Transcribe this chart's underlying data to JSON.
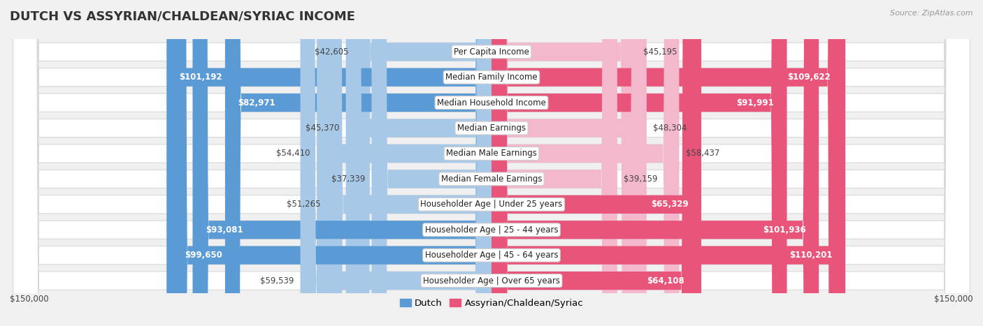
{
  "title": "DUTCH VS ASSYRIAN/CHALDEAN/SYRIAC INCOME",
  "source": "Source: ZipAtlas.com",
  "categories": [
    "Per Capita Income",
    "Median Family Income",
    "Median Household Income",
    "Median Earnings",
    "Median Male Earnings",
    "Median Female Earnings",
    "Householder Age | Under 25 years",
    "Householder Age | 25 - 44 years",
    "Householder Age | 45 - 64 years",
    "Householder Age | Over 65 years"
  ],
  "dutch_values": [
    42605,
    101192,
    82971,
    45370,
    54410,
    37339,
    51265,
    93081,
    99650,
    59539
  ],
  "assyrian_values": [
    45195,
    109622,
    91991,
    48304,
    58437,
    39159,
    65329,
    101936,
    110201,
    64108
  ],
  "dutch_labels": [
    "$42,605",
    "$101,192",
    "$82,971",
    "$45,370",
    "$54,410",
    "$37,339",
    "$51,265",
    "$93,081",
    "$99,650",
    "$59,539"
  ],
  "assyrian_labels": [
    "$45,195",
    "$109,622",
    "$91,991",
    "$48,304",
    "$58,437",
    "$39,159",
    "$65,329",
    "$101,936",
    "$110,201",
    "$64,108"
  ],
  "dutch_color_light": "#a8c8e8",
  "dutch_color_dark": "#5b9bd5",
  "assyrian_color_light": "#f4b8cc",
  "assyrian_color_dark": "#e8547a",
  "max_value": 150000,
  "background_color": "#f0f0f0",
  "row_bg_color": "#ffffff",
  "row_border_color": "#d8d8d8",
  "legend_dutch": "Dutch",
  "legend_assyrian": "Assyrian/Chaldean/Syriac",
  "xlabel_left": "$150,000",
  "xlabel_right": "$150,000",
  "title_color": "#333333",
  "source_color": "#999999",
  "label_dark_threshold": 60000,
  "label_fontsize": 8.5,
  "title_fontsize": 13,
  "source_fontsize": 8
}
